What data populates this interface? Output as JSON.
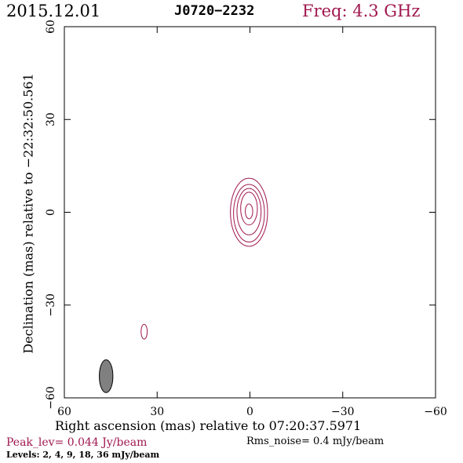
{
  "header": {
    "date": "2015.12.01",
    "source": "J0720−2232",
    "freq": "Freq: 4.3 GHz"
  },
  "footer": {
    "peak": "Peak_lev=  0.044 Jy/beam",
    "rms": "Rms_noise=  0.4 mJy/beam",
    "levels": "Levels:   2,   4,   9,   18,   36 mJy/beam"
  },
  "colors": {
    "accent": "#a0174f",
    "contour": "#a0174f",
    "beam_fill": "#808080",
    "axis": "#000000"
  },
  "chart_data": {
    "type": "contour",
    "xlabel": "Right ascension (mas) relative to 07:20:37.5971",
    "ylabel": "Declination (mas) relative to −22:32:50.561",
    "xlim": [
      60,
      -60
    ],
    "ylim": [
      -60,
      60
    ],
    "x_ticks": [
      60,
      30,
      0,
      -30,
      -60
    ],
    "y_ticks": [
      -60,
      -30,
      0,
      30,
      60
    ],
    "x_tick_labels": [
      "60",
      "30",
      "0",
      "−30",
      "−60"
    ],
    "y_tick_labels": [
      "−60",
      "−30",
      "0",
      "30",
      "60"
    ],
    "peak_jy_per_beam": 0.044,
    "rms_mjy_per_beam": 0.4,
    "contour_levels_mjy": [
      2,
      4,
      9,
      18,
      36
    ],
    "contours": [
      {
        "component": "core",
        "level_mjy": 2,
        "center": [
          0.3,
          0.0
        ],
        "semi_x": 6.0,
        "semi_y": 11.0
      },
      {
        "component": "core",
        "level_mjy": 4,
        "center": [
          0.3,
          -0.3
        ],
        "semi_x": 5.0,
        "semi_y": 9.3
      },
      {
        "component": "core",
        "level_mjy": 9,
        "center": [
          0.3,
          0.2
        ],
        "semi_x": 3.9,
        "semi_y": 7.5
      },
      {
        "component": "core",
        "level_mjy": 18,
        "center": [
          0.3,
          1.2
        ],
        "semi_x": 2.7,
        "semi_y": 5.3
      },
      {
        "component": "core",
        "level_mjy": 36,
        "center": [
          0.3,
          0.3
        ],
        "semi_x": 1.2,
        "semi_y": 2.4
      },
      {
        "component": "knot",
        "level_mjy": 2,
        "center": [
          34.2,
          -38.6
        ],
        "semi_x": 1.0,
        "semi_y": 2.4
      }
    ],
    "beam": {
      "center": [
        46.5,
        -53.0
      ],
      "semi_x": 2.2,
      "semi_y": 5.3,
      "pa_deg": 0
    }
  }
}
